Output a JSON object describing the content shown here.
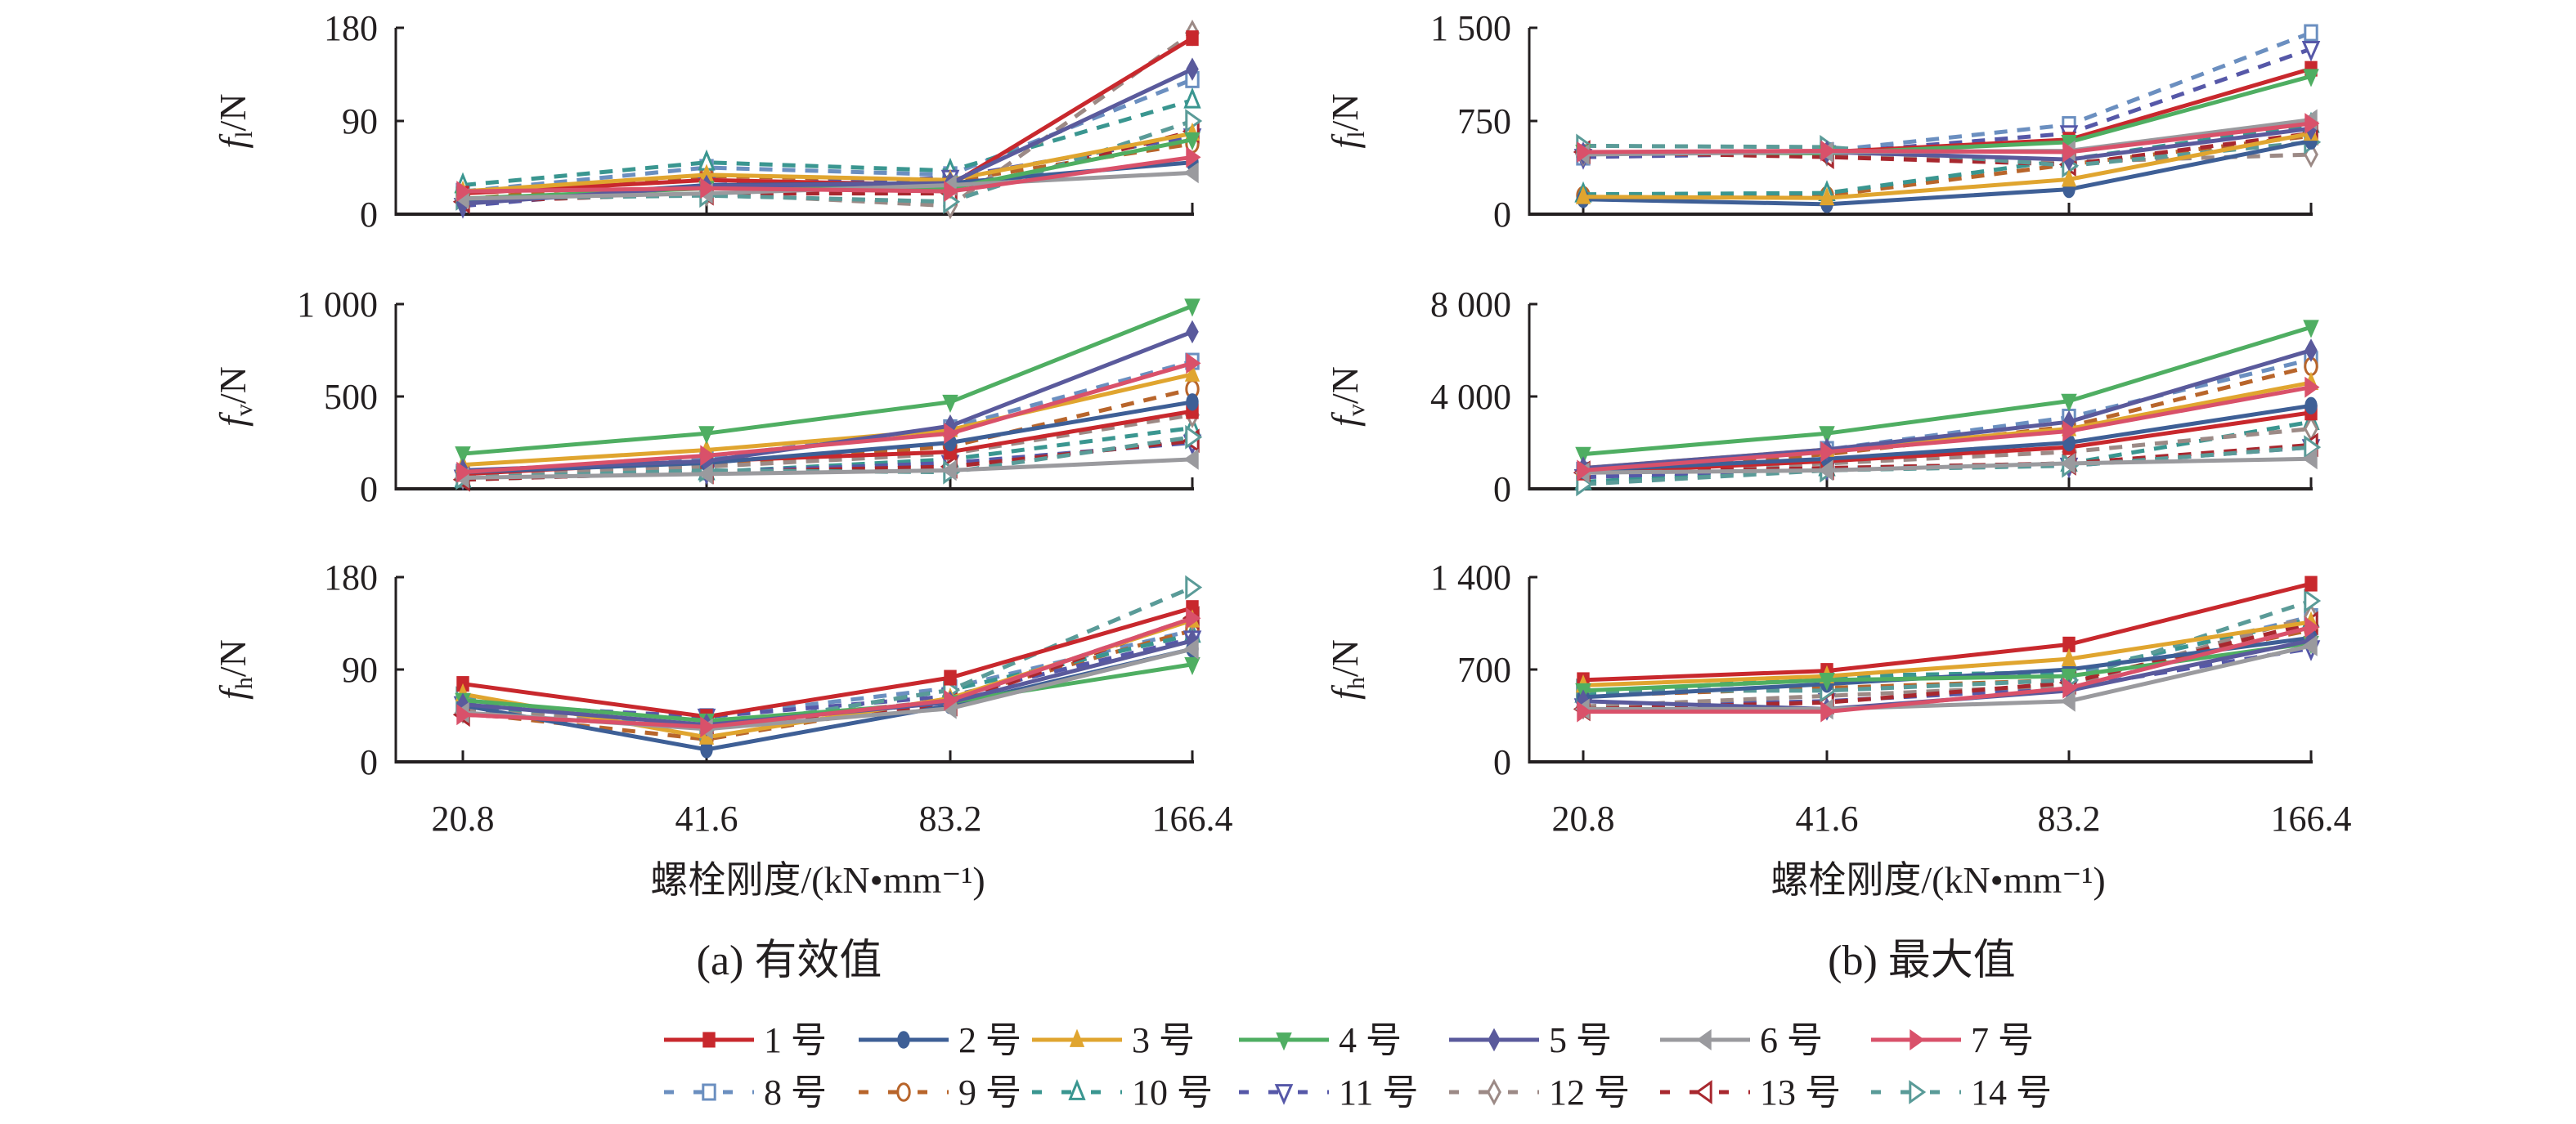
{
  "chart_data": {
    "type": "line",
    "x": [
      20.8,
      41.6,
      83.2,
      166.4
    ],
    "xtick_labels": [
      "20.8",
      "41.6",
      "83.2",
      "166.4"
    ],
    "xlabel": "螺栓刚度/(kN•mm⁻¹)",
    "legend_position": "bottom",
    "series_meta": [
      {
        "name": "1 号",
        "color": "#c8282d",
        "marker": "square",
        "filled": true,
        "dashed": false
      },
      {
        "name": "2 号",
        "color": "#3e5f96",
        "marker": "circle",
        "filled": true,
        "dashed": false
      },
      {
        "name": "3 号",
        "color": "#e0a52f",
        "marker": "triangle-up",
        "filled": true,
        "dashed": false
      },
      {
        "name": "4 号",
        "color": "#4fae62",
        "marker": "triangle-down",
        "filled": true,
        "dashed": false
      },
      {
        "name": "5 号",
        "color": "#5a5a9c",
        "marker": "diamond",
        "filled": true,
        "dashed": false
      },
      {
        "name": "6 号",
        "color": "#9a9a9e",
        "marker": "triangle-left",
        "filled": true,
        "dashed": false
      },
      {
        "name": "7 号",
        "color": "#d9516a",
        "marker": "triangle-right",
        "filled": true,
        "dashed": false
      },
      {
        "name": "8 号",
        "color": "#6b8fc0",
        "marker": "square",
        "filled": false,
        "dashed": true
      },
      {
        "name": "9 号",
        "color": "#b8652b",
        "marker": "circle",
        "filled": false,
        "dashed": true
      },
      {
        "name": "10 号",
        "color": "#3a9690",
        "marker": "triangle-up",
        "filled": false,
        "dashed": true
      },
      {
        "name": "11 号",
        "color": "#5658a8",
        "marker": "triangle-down",
        "filled": false,
        "dashed": true
      },
      {
        "name": "12 号",
        "color": "#9c8a86",
        "marker": "diamond",
        "filled": false,
        "dashed": true
      },
      {
        "name": "13 号",
        "color": "#a8282f",
        "marker": "triangle-left",
        "filled": false,
        "dashed": true
      },
      {
        "name": "14 号",
        "color": "#5a9b98",
        "marker": "triangle-right",
        "filled": false,
        "dashed": true
      }
    ],
    "panels": [
      {
        "id": "a-fl",
        "column": "a",
        "row": 0,
        "ylabel_main": "f",
        "ylabel_sub": "l",
        "ylabel_unit": "/N",
        "ylim": [
          0,
          180
        ],
        "yticks": [
          0,
          90,
          180
        ],
        "ytick_labels": [
          "0",
          "90",
          "180"
        ],
        "series": [
          [
            20,
            33,
            28,
            170
          ],
          [
            12,
            28,
            30,
            50
          ],
          [
            22,
            38,
            33,
            78
          ],
          [
            15,
            25,
            25,
            72
          ],
          [
            10,
            27,
            30,
            140
          ],
          [
            15,
            20,
            28,
            40
          ],
          [
            22,
            25,
            22,
            55
          ],
          [
            22,
            45,
            38,
            130
          ],
          [
            14,
            37,
            32,
            68
          ],
          [
            28,
            50,
            42,
            110
          ],
          [
            8,
            28,
            35,
            75
          ],
          [
            12,
            20,
            8,
            175
          ],
          [
            12,
            20,
            20,
            80
          ],
          [
            15,
            18,
            12,
            90
          ]
        ]
      },
      {
        "id": "a-fv",
        "column": "a",
        "row": 1,
        "ylabel_main": "f",
        "ylabel_sub": "v",
        "ylabel_unit": "/N",
        "ylim": [
          0,
          1000
        ],
        "yticks": [
          0,
          500,
          1000
        ],
        "ytick_labels": [
          "0",
          "500",
          "1 000"
        ],
        "series": [
          [
            80,
            150,
            200,
            420
          ],
          [
            90,
            140,
            250,
            470
          ],
          [
            130,
            210,
            320,
            620
          ],
          [
            190,
            300,
            470,
            990
          ],
          [
            100,
            150,
            340,
            850
          ],
          [
            60,
            80,
            100,
            160
          ],
          [
            90,
            180,
            300,
            680
          ],
          [
            90,
            170,
            330,
            690
          ],
          [
            70,
            130,
            230,
            540
          ],
          [
            50,
            90,
            160,
            330
          ],
          [
            60,
            90,
            140,
            250
          ],
          [
            70,
            120,
            190,
            400
          ],
          [
            50,
            90,
            120,
            260
          ],
          [
            60,
            100,
            90,
            280
          ]
        ]
      },
      {
        "id": "a-fh",
        "column": "a",
        "row": 2,
        "ylabel_main": "f",
        "ylabel_sub": "h",
        "ylabel_unit": "/N",
        "ylim": [
          0,
          180
        ],
        "yticks": [
          0,
          90,
          180
        ],
        "ytick_labels": [
          "0",
          "90",
          "180"
        ],
        "series": [
          [
            76,
            44,
            82,
            150
          ],
          [
            55,
            12,
            55,
            110
          ],
          [
            66,
            24,
            62,
            138
          ],
          [
            60,
            40,
            58,
            95
          ],
          [
            56,
            36,
            58,
            118
          ],
          [
            48,
            32,
            52,
            110
          ],
          [
            46,
            34,
            60,
            140
          ],
          [
            56,
            44,
            72,
            128
          ],
          [
            48,
            22,
            62,
            128
          ],
          [
            54,
            32,
            70,
            124
          ],
          [
            56,
            44,
            64,
            120
          ],
          [
            50,
            36,
            60,
            140
          ],
          [
            46,
            34,
            56,
            140
          ],
          [
            62,
            32,
            70,
            170
          ]
        ]
      },
      {
        "id": "b-fl",
        "column": "b",
        "row": 0,
        "ylabel_main": "f",
        "ylabel_sub": "l",
        "ylabel_unit": "/N",
        "ylim": [
          0,
          1500
        ],
        "yticks": [
          0,
          750,
          1500
        ],
        "ytick_labels": [
          "0",
          "750",
          "1 500"
        ],
        "series": [
          [
            500,
            500,
            600,
            1170
          ],
          [
            120,
            80,
            200,
            590
          ],
          [
            140,
            130,
            280,
            650
          ],
          [
            500,
            490,
            580,
            1110
          ],
          [
            490,
            500,
            440,
            690
          ],
          [
            480,
            500,
            510,
            760
          ],
          [
            500,
            510,
            500,
            730
          ],
          [
            460,
            510,
            720,
            1460
          ],
          [
            150,
            150,
            400,
            630
          ],
          [
            160,
            170,
            440,
            720
          ],
          [
            460,
            490,
            650,
            1330
          ],
          [
            490,
            490,
            420,
            480
          ],
          [
            500,
            460,
            400,
            650
          ],
          [
            550,
            540,
            390,
            580
          ]
        ]
      },
      {
        "id": "b-fv",
        "column": "b",
        "row": 1,
        "ylabel_main": "f",
        "ylabel_sub": "v",
        "ylabel_unit": "/N",
        "ylim": [
          0,
          8000
        ],
        "yticks": [
          0,
          4000,
          8000
        ],
        "ytick_labels": [
          "0",
          "4 000",
          "8 000"
        ],
        "series": [
          [
            700,
            1200,
            1800,
            3300
          ],
          [
            800,
            1300,
            2000,
            3600
          ],
          [
            900,
            1700,
            2600,
            4600
          ],
          [
            1500,
            2400,
            3800,
            7000
          ],
          [
            900,
            1700,
            2900,
            6000
          ],
          [
            700,
            800,
            1100,
            1300
          ],
          [
            800,
            1600,
            2500,
            4400
          ],
          [
            800,
            1700,
            3100,
            5600
          ],
          [
            700,
            1500,
            2700,
            5300
          ],
          [
            300,
            900,
            1100,
            2900
          ],
          [
            500,
            900,
            1000,
            1800
          ],
          [
            700,
            1100,
            1600,
            2600
          ],
          [
            700,
            900,
            1100,
            1900
          ],
          [
            200,
            800,
            1000,
            1800
          ]
        ]
      },
      {
        "id": "b-fh",
        "column": "b",
        "row": 2,
        "ylabel_main": "f",
        "ylabel_sub": "h",
        "ylabel_unit": "/N",
        "ylim": [
          0,
          1400
        ],
        "yticks": [
          0,
          700,
          1400
        ],
        "ytick_labels": [
          "0",
          "700",
          "1 400"
        ],
        "series": [
          [
            620,
            690,
            890,
            1350
          ],
          [
            490,
            590,
            700,
            940
          ],
          [
            580,
            650,
            780,
            1060
          ],
          [
            540,
            620,
            650,
            900
          ],
          [
            460,
            400,
            540,
            920
          ],
          [
            400,
            400,
            460,
            880
          ],
          [
            380,
            380,
            560,
            1020
          ],
          [
            520,
            630,
            660,
            1100
          ],
          [
            500,
            560,
            620,
            1000
          ],
          [
            510,
            650,
            680,
            1080
          ],
          [
            420,
            460,
            560,
            860
          ],
          [
            420,
            500,
            580,
            1100
          ],
          [
            400,
            450,
            600,
            1050
          ],
          [
            540,
            540,
            620,
            1220
          ]
        ]
      }
    ],
    "subtitles": {
      "a": "(a) 有效值",
      "b": "(b) 最大值"
    }
  }
}
